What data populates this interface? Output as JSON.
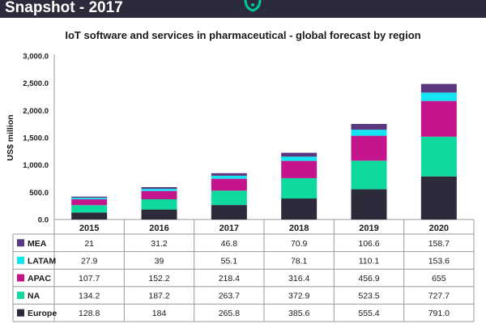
{
  "header": {
    "title": "Snapshot - 2017"
  },
  "colors": {
    "header_bg": "#2b2b3c",
    "logo_accent": "#00c99a",
    "Europe": "#2b2b3c",
    "NA": "#10d9a0",
    "APAC": "#c4158c",
    "LATAM": "#14e4f2",
    "MEA": "#5b3880"
  },
  "chart_data": {
    "type": "bar",
    "stacked": true,
    "title": "IoT software and services in pharmaceutical - global forecast by region",
    "ylabel": "US$ million",
    "xlabel": "",
    "ylim": [
      0,
      3000
    ],
    "yticks": [
      "0.0",
      "500.0",
      "1,000.0",
      "1,500.0",
      "2,000.0",
      "2,500.0",
      "3,000.0"
    ],
    "categories": [
      "2015",
      "2016",
      "2017",
      "2018",
      "2019",
      "2020"
    ],
    "grid": false,
    "legend": "table-below",
    "series": [
      {
        "name": "Europe",
        "values": [
          128.8,
          184,
          265.8,
          385.6,
          555.4,
          791.0
        ],
        "labels": [
          "128.8",
          "184",
          "265.8",
          "385.6",
          "555.4",
          "791.0"
        ]
      },
      {
        "name": "NA",
        "values": [
          134.2,
          187.2,
          263.7,
          372.9,
          523.5,
          727.7
        ],
        "labels": [
          "134.2",
          "187.2",
          "263.7",
          "372.9",
          "523.5",
          "727.7"
        ]
      },
      {
        "name": "APAC",
        "values": [
          107.7,
          152.2,
          218.4,
          316.4,
          456.9,
          655
        ],
        "labels": [
          "107.7",
          "152.2",
          "218.4",
          "316.4",
          "456.9",
          "655"
        ]
      },
      {
        "name": "LATAM",
        "values": [
          27.9,
          39,
          55.1,
          78.1,
          110.1,
          153.6
        ],
        "labels": [
          "27.9",
          "39",
          "55.1",
          "78.1",
          "110.1",
          "153.6"
        ]
      },
      {
        "name": "MEA",
        "values": [
          21,
          31.2,
          46.8,
          70.9,
          106.6,
          158.7
        ],
        "labels": [
          "21",
          "31.2",
          "46.8",
          "70.9",
          "106.6",
          "158.7"
        ]
      }
    ],
    "table_order": [
      "MEA",
      "LATAM",
      "APAC",
      "NA",
      "Europe"
    ]
  }
}
